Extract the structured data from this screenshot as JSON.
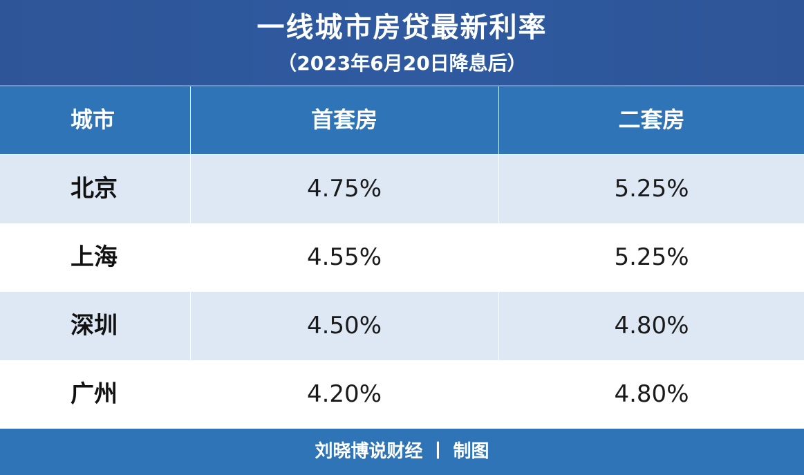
{
  "header": {
    "title": "一线城市房贷最新利率",
    "subtitle": "（2023年6月20日降息后）"
  },
  "table": {
    "columns": [
      "城市",
      "首套房",
      "二套房"
    ],
    "rows": [
      {
        "city": "北京",
        "first_home": "4.75%",
        "second_home": "5.25%"
      },
      {
        "city": "上海",
        "first_home": "4.55%",
        "second_home": "5.25%"
      },
      {
        "city": "深圳",
        "first_home": "4.50%",
        "second_home": "4.80%"
      },
      {
        "city": "广州",
        "first_home": "4.20%",
        "second_home": "4.80%"
      }
    ]
  },
  "footer": {
    "credit": "刘晓博说财经 丨 制图"
  },
  "colors": {
    "title_bg": "#2e5597",
    "header_bg": "#2f74b6",
    "stripe_bg": "#dde8f4",
    "footer_bg": "#2f74b6"
  }
}
